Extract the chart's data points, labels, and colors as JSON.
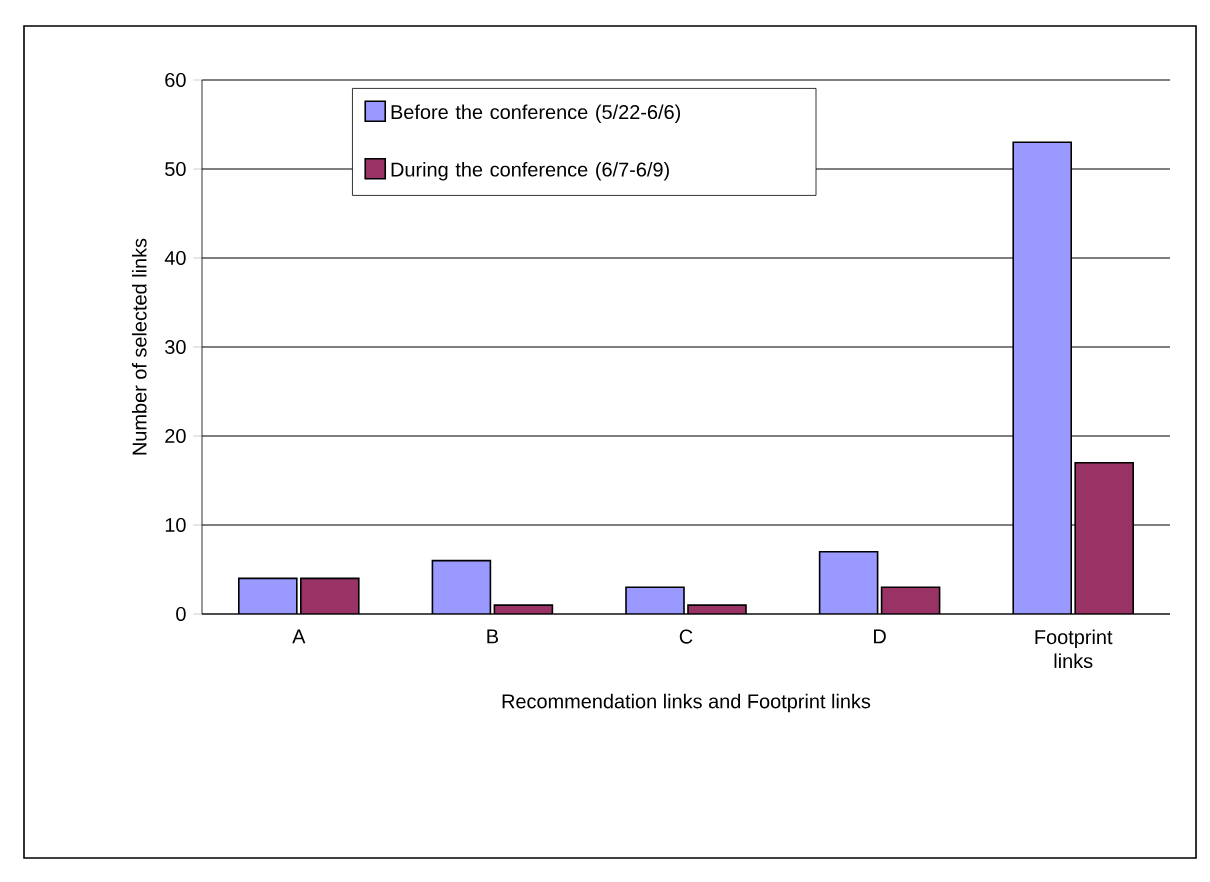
{
  "chart_data": {
    "type": "bar",
    "xlabel": "Recommendation links and Footprint links",
    "ylabel": "Number of selected links",
    "categories": [
      "A",
      "B",
      "C",
      "D",
      "Footprint links"
    ],
    "series": [
      {
        "name": "Before the conference (5/22-6/6)",
        "color": "#9999ff",
        "values": [
          4,
          6,
          3,
          7,
          53
        ]
      },
      {
        "name": "During the conference (6/7-6/9)",
        "color": "#993366",
        "values": [
          4,
          1,
          1,
          3,
          17
        ]
      }
    ],
    "ylim": [
      0,
      60
    ],
    "yticks": [
      0,
      10,
      20,
      30,
      40,
      50,
      60
    ],
    "grid": "y",
    "legend": "top"
  }
}
